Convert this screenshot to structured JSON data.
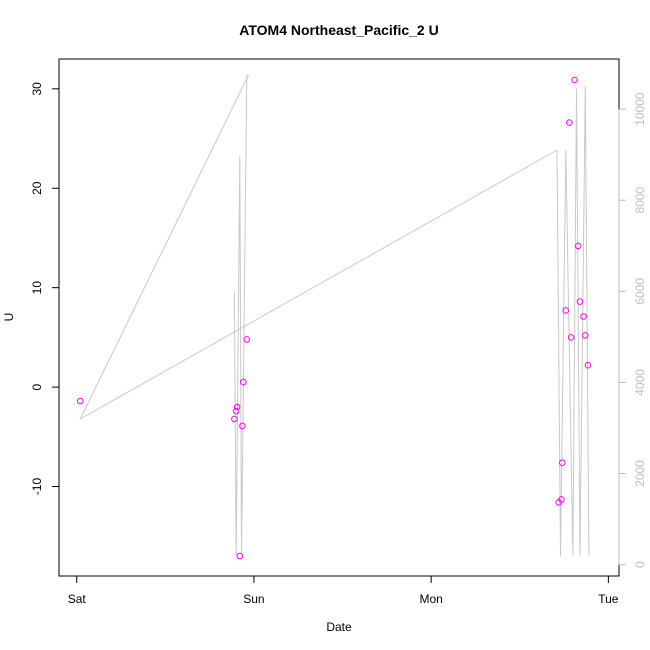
{
  "chart_data": {
    "type": "scatter",
    "title": "ATOM4 Northeast_Pacific_2 U",
    "xlabel": "Date",
    "ylabel": "U",
    "x_tick_labels": [
      "Sat",
      "Sun",
      "Mon",
      "Tue"
    ],
    "x_ticks_days": [
      0,
      1,
      2,
      3
    ],
    "xlim_days": [
      -0.1,
      3.06
    ],
    "ylim": [
      -19,
      33
    ],
    "y_ticks": [
      -10,
      0,
      10,
      20,
      30
    ],
    "y_right_lim": [
      -250,
      11100
    ],
    "y_right_ticks": [
      0,
      2000,
      4000,
      6000,
      8000,
      10000
    ],
    "grid": false,
    "colors": {
      "points": "#ff00ff",
      "line": "#c8c8c8",
      "axis": "#000000",
      "right_axis": "#bebebe"
    },
    "series": [
      {
        "values": [
          {
            "x": 0.02,
            "y": -1.4
          },
          {
            "x": 0.89,
            "y": -3.2
          },
          {
            "x": 0.9,
            "y": -2.4
          },
          {
            "x": 0.905,
            "y": -2.0
          },
          {
            "x": 0.92,
            "y": -17.0
          },
          {
            "x": 0.935,
            "y": -3.9
          },
          {
            "x": 0.94,
            "y": 0.5
          },
          {
            "x": 0.96,
            "y": 4.8
          },
          {
            "x": 2.72,
            "y": -11.6
          },
          {
            "x": 2.735,
            "y": -11.3
          },
          {
            "x": 2.74,
            "y": -7.6
          },
          {
            "x": 2.76,
            "y": 7.7
          },
          {
            "x": 2.78,
            "y": 26.6
          },
          {
            "x": 2.79,
            "y": 5.0
          },
          {
            "x": 2.81,
            "y": 30.9
          },
          {
            "x": 2.83,
            "y": 14.2
          },
          {
            "x": 2.84,
            "y": 8.6
          },
          {
            "x": 2.86,
            "y": 7.1
          },
          {
            "x": 2.87,
            "y": 5.2
          },
          {
            "x": 2.885,
            "y": 2.2
          }
        ]
      },
      {
        "axis": "right",
        "values": [
          {
            "x": 0.02,
            "y": 3200
          },
          {
            "x": 0.97,
            "y": 10750
          },
          {
            "x": 0.02,
            "y": 3200
          },
          {
            "x": 2.71,
            "y": 9100
          },
          {
            "x": 2.73,
            "y": 200
          },
          {
            "x": 2.76,
            "y": 9100
          },
          {
            "x": 2.8,
            "y": 200
          },
          {
            "x": 2.82,
            "y": 10450
          },
          {
            "x": 2.84,
            "y": 200
          },
          {
            "x": 2.87,
            "y": 10500
          },
          {
            "x": 2.89,
            "y": 200
          }
        ]
      },
      {
        "axis": "right",
        "values": [
          {
            "x": 0.89,
            "y": 6000
          },
          {
            "x": 0.9,
            "y": 200
          },
          {
            "x": 0.92,
            "y": 8980
          },
          {
            "x": 0.93,
            "y": 200
          },
          {
            "x": 0.96,
            "y": 10750
          }
        ]
      }
    ]
  }
}
